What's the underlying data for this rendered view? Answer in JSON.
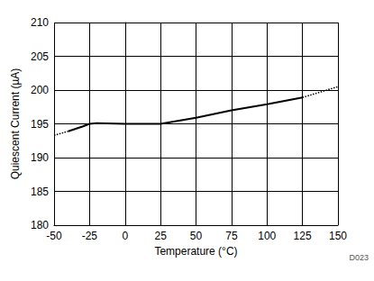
{
  "chart_data": {
    "type": "line",
    "x_label": "Temperature (°C)",
    "y_label": "Quiescent Current (µA)",
    "annotation": "D023",
    "x": [
      -50,
      -40,
      -30,
      -25,
      -20,
      0,
      25,
      50,
      75,
      100,
      125,
      150
    ],
    "series": [
      {
        "color": "#000000",
        "line_style": "solid",
        "values": [
          null,
          193.9,
          194.6,
          195.0,
          195.1,
          195.0,
          195.0,
          195.9,
          197.0,
          197.9,
          198.9,
          null
        ]
      },
      {
        "color": "#000000",
        "line_style": "dotted",
        "values": [
          193.3,
          193.9,
          null,
          null,
          null,
          null,
          null,
          null,
          null,
          null,
          198.9,
          200.5
        ]
      }
    ],
    "xlim": [
      -50,
      150
    ],
    "xticks": [
      -50,
      -25,
      0,
      25,
      50,
      75,
      100,
      125,
      150
    ],
    "ylim": [
      180,
      210
    ],
    "yticks": [
      180,
      185,
      190,
      195,
      200,
      205,
      210
    ],
    "grid": true
  }
}
